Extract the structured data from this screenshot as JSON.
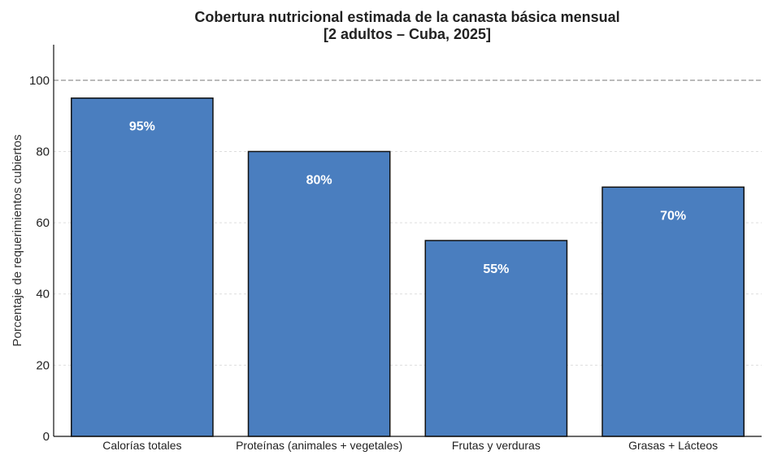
{
  "chart_data": {
    "type": "bar",
    "title": "Cobertura nutricional estimada de la canasta básica mensual",
    "subtitle": "[2 adultos – Cuba, 2025]",
    "xlabel": "",
    "ylabel": "Porcentaje de requerimientos cubiertos",
    "categories": [
      "Calorías totales",
      "Proteínas (animales + vegetales)",
      "Frutas y verduras",
      "Grasas + Lácteos"
    ],
    "values": [
      95,
      80,
      55,
      70
    ],
    "data_labels": [
      "95%",
      "80%",
      "55%",
      "70%"
    ],
    "ylim": [
      0,
      110
    ],
    "yticks": [
      0,
      20,
      40,
      60,
      80,
      100
    ],
    "reference_line": 100,
    "grid": true,
    "legend": "none",
    "colors": {
      "bar": "#4a7ebf",
      "bar_edge": "#111111",
      "grid": "#dddddd",
      "reference": "#888888"
    }
  }
}
